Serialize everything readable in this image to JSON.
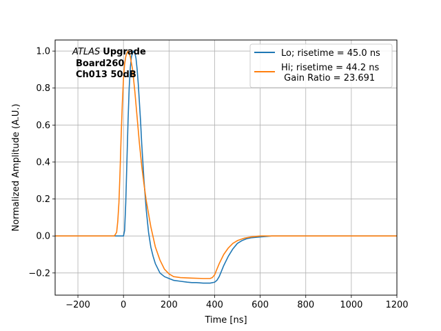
{
  "chart_data": {
    "type": "line",
    "xlabel": "Time [ns]",
    "ylabel": "Normalized Amplitude (A.U.)",
    "xlim": [
      -300,
      1200
    ],
    "ylim": [
      -0.32,
      1.06
    ],
    "xticks": [
      -200,
      0,
      200,
      400,
      600,
      800,
      1000,
      1200
    ],
    "yticks": [
      -0.2,
      0.0,
      0.2,
      0.4,
      0.6,
      0.8,
      1.0
    ],
    "xtick_labels": [
      "−200",
      "0",
      "200",
      "400",
      "600",
      "800",
      "1000",
      "1200"
    ],
    "ytick_labels": [
      "−0.2",
      "0.0",
      "0.2",
      "0.4",
      "0.6",
      "0.8",
      "1.0"
    ],
    "grid": true,
    "legend_position": "top-right",
    "annotation": {
      "italic": "ATLAS",
      "bold": "Upgrade",
      "lines": [
        "Board260",
        "Ch013 50dB"
      ]
    },
    "series": [
      {
        "name": "Lo; risetime = 45.0 ns",
        "color": "#1f77b4",
        "x": [
          -300,
          -120,
          -20,
          0,
          5,
          10,
          15,
          20,
          25,
          30,
          35,
          40,
          45,
          50,
          55,
          60,
          65,
          70,
          75,
          80,
          85,
          90,
          95,
          100,
          110,
          120,
          130,
          140,
          160,
          180,
          200,
          220,
          250,
          280,
          300,
          320,
          350,
          380,
          400,
          410,
          420,
          430,
          440,
          460,
          480,
          500,
          520,
          540,
          560,
          600,
          650,
          800,
          1000,
          1200
        ],
        "y": [
          0.0,
          0.0,
          0.0,
          0.0,
          0.03,
          0.18,
          0.4,
          0.62,
          0.8,
          0.91,
          0.97,
          0.99,
          1.0,
          0.99,
          0.96,
          0.9,
          0.82,
          0.72,
          0.62,
          0.5,
          0.4,
          0.3,
          0.22,
          0.14,
          0.02,
          -0.06,
          -0.11,
          -0.15,
          -0.2,
          -0.22,
          -0.23,
          -0.24,
          -0.245,
          -0.25,
          -0.252,
          -0.252,
          -0.255,
          -0.255,
          -0.25,
          -0.24,
          -0.22,
          -0.19,
          -0.16,
          -0.11,
          -0.07,
          -0.04,
          -0.025,
          -0.015,
          -0.01,
          -0.005,
          0.0,
          0.0,
          0.0,
          0.0
        ]
      },
      {
        "name": "Hi; risetime = 44.2 ns\n Gain Ratio = 23.691",
        "color": "#ff7f0e",
        "x": [
          -300,
          -100,
          -40,
          -30,
          -25,
          -20,
          -15,
          -10,
          -5,
          0,
          5,
          10,
          15,
          20,
          25,
          30,
          40,
          50,
          60,
          70,
          80,
          90,
          100,
          120,
          140,
          160,
          180,
          200,
          220,
          250,
          300,
          350,
          380,
          390,
          400,
          410,
          420,
          440,
          460,
          480,
          500,
          530,
          560,
          600,
          700,
          900,
          1200
        ],
        "y": [
          0.0,
          0.0,
          0.0,
          0.02,
          0.08,
          0.18,
          0.35,
          0.55,
          0.72,
          0.85,
          0.93,
          0.97,
          0.99,
          1.0,
          0.99,
          0.97,
          0.9,
          0.78,
          0.64,
          0.5,
          0.38,
          0.28,
          0.19,
          0.05,
          -0.06,
          -0.13,
          -0.18,
          -0.205,
          -0.22,
          -0.225,
          -0.228,
          -0.23,
          -0.23,
          -0.225,
          -0.21,
          -0.18,
          -0.15,
          -0.1,
          -0.065,
          -0.04,
          -0.025,
          -0.012,
          -0.005,
          0.0,
          0.0,
          0.0,
          0.0
        ]
      }
    ]
  }
}
